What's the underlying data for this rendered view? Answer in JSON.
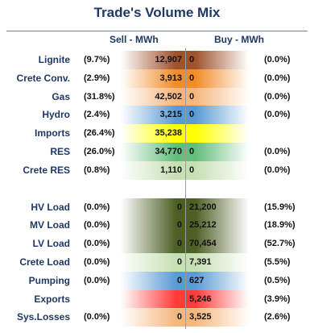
{
  "title": "Trade's Volume Mix",
  "headers": {
    "sell": "Sell - MWh",
    "buy": "Buy - MWh"
  },
  "colors": {
    "title": "#1f3864",
    "brown": "#a0522d",
    "orange": "#f28c28",
    "peach": "#f6b77f",
    "blue": "#5b9bd5",
    "yellow": "#ffff00",
    "green": "#63be7b",
    "lightgreen": "#c6e0b4",
    "olive": "#4e5f26",
    "red": "#ff3b3b"
  },
  "chart_data": {
    "type": "table",
    "title": "Trade's Volume Mix",
    "columns": [
      "Sell - MWh",
      "Buy - MWh"
    ],
    "rows": [
      {
        "label": "Lignite",
        "sell_pct": "(9.7%)",
        "sell": "12,907",
        "buy": "0",
        "buy_pct": "(0.0%)",
        "sell_color": "brown",
        "buy_color": "brown"
      },
      {
        "label": "Crete Conv.",
        "sell_pct": "(2.9%)",
        "sell": "3,913",
        "buy": "0",
        "buy_pct": "(0.0%)",
        "sell_color": "orange",
        "buy_color": "orange"
      },
      {
        "label": "Gas",
        "sell_pct": "(31.8%)",
        "sell": "42,502",
        "buy": "0",
        "buy_pct": "(0.0%)",
        "sell_color": "peach",
        "buy_color": "peach"
      },
      {
        "label": "Hydro",
        "sell_pct": "(2.4%)",
        "sell": "3,215",
        "buy": "0",
        "buy_pct": "(0.0%)",
        "sell_color": "blue",
        "buy_color": "blue"
      },
      {
        "label": "Imports",
        "sell_pct": "(26.4%)",
        "sell": "35,238",
        "buy": "",
        "buy_pct": "",
        "sell_color": "yellow",
        "buy_color": "yellow"
      },
      {
        "label": "RES",
        "sell_pct": "(26.0%)",
        "sell": "34,770",
        "buy": "0",
        "buy_pct": "(0.0%)",
        "sell_color": "green",
        "buy_color": "green"
      },
      {
        "label": "Crete RES",
        "sell_pct": "(0.8%)",
        "sell": "1,110",
        "buy": "0",
        "buy_pct": "(0.0%)",
        "sell_color": "lightgreen",
        "buy_color": "lightgreen"
      },
      {
        "label": "HV Load",
        "sell_pct": "(0.0%)",
        "sell": "0",
        "buy": "21,200",
        "buy_pct": "(15.9%)",
        "sell_color": "olive",
        "buy_color": "olive"
      },
      {
        "label": "MV Load",
        "sell_pct": "(0.0%)",
        "sell": "0",
        "buy": "25,212",
        "buy_pct": "(18.9%)",
        "sell_color": "olive",
        "buy_color": "olive"
      },
      {
        "label": "LV Load",
        "sell_pct": "(0.0%)",
        "sell": "0",
        "buy": "70,454",
        "buy_pct": "(52.7%)",
        "sell_color": "olive",
        "buy_color": "olive"
      },
      {
        "label": "Crete Load",
        "sell_pct": "(0.0%)",
        "sell": "0",
        "buy": "7,391",
        "buy_pct": "(5.5%)",
        "sell_color": "lightgreen",
        "buy_color": "lightgreen"
      },
      {
        "label": "Pumping",
        "sell_pct": "(0.0%)",
        "sell": "0",
        "buy": "627",
        "buy_pct": "(0.5%)",
        "sell_color": "blue",
        "buy_color": "blue"
      },
      {
        "label": "Exports",
        "sell_pct": "",
        "sell": "",
        "buy": "5,246",
        "buy_pct": "(3.9%)",
        "sell_color": "red",
        "buy_color": "red"
      },
      {
        "label": "Sys.Losses",
        "sell_pct": "(0.0%)",
        "sell": "0",
        "buy": "3,525",
        "buy_pct": "(2.6%)",
        "sell_color": "peach",
        "buy_color": "peach"
      }
    ]
  }
}
